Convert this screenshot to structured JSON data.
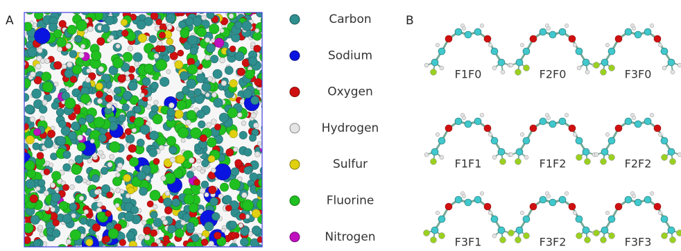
{
  "panels": {
    "a": "A",
    "b": "B"
  },
  "legend": [
    {
      "name": "Carbon",
      "color": "#2f8f8f"
    },
    {
      "name": "Sodium",
      "color": "#0a14e0"
    },
    {
      "name": "Oxygen",
      "color": "#d01010"
    },
    {
      "name": "Hydrogen",
      "color": "#e4e4e4"
    },
    {
      "name": "Sulfur",
      "color": "#e0d010"
    },
    {
      "name": "Fluorine",
      "color": "#20c020"
    },
    {
      "name": "Nitrogen",
      "color": "#c010c0"
    }
  ],
  "molecules": [
    [
      "F1F0",
      "F2F0",
      "F3F0"
    ],
    [
      "F1F1",
      "F1F2",
      "F2F2"
    ],
    [
      "F3F1",
      "F3F2",
      "F3F3"
    ]
  ]
}
